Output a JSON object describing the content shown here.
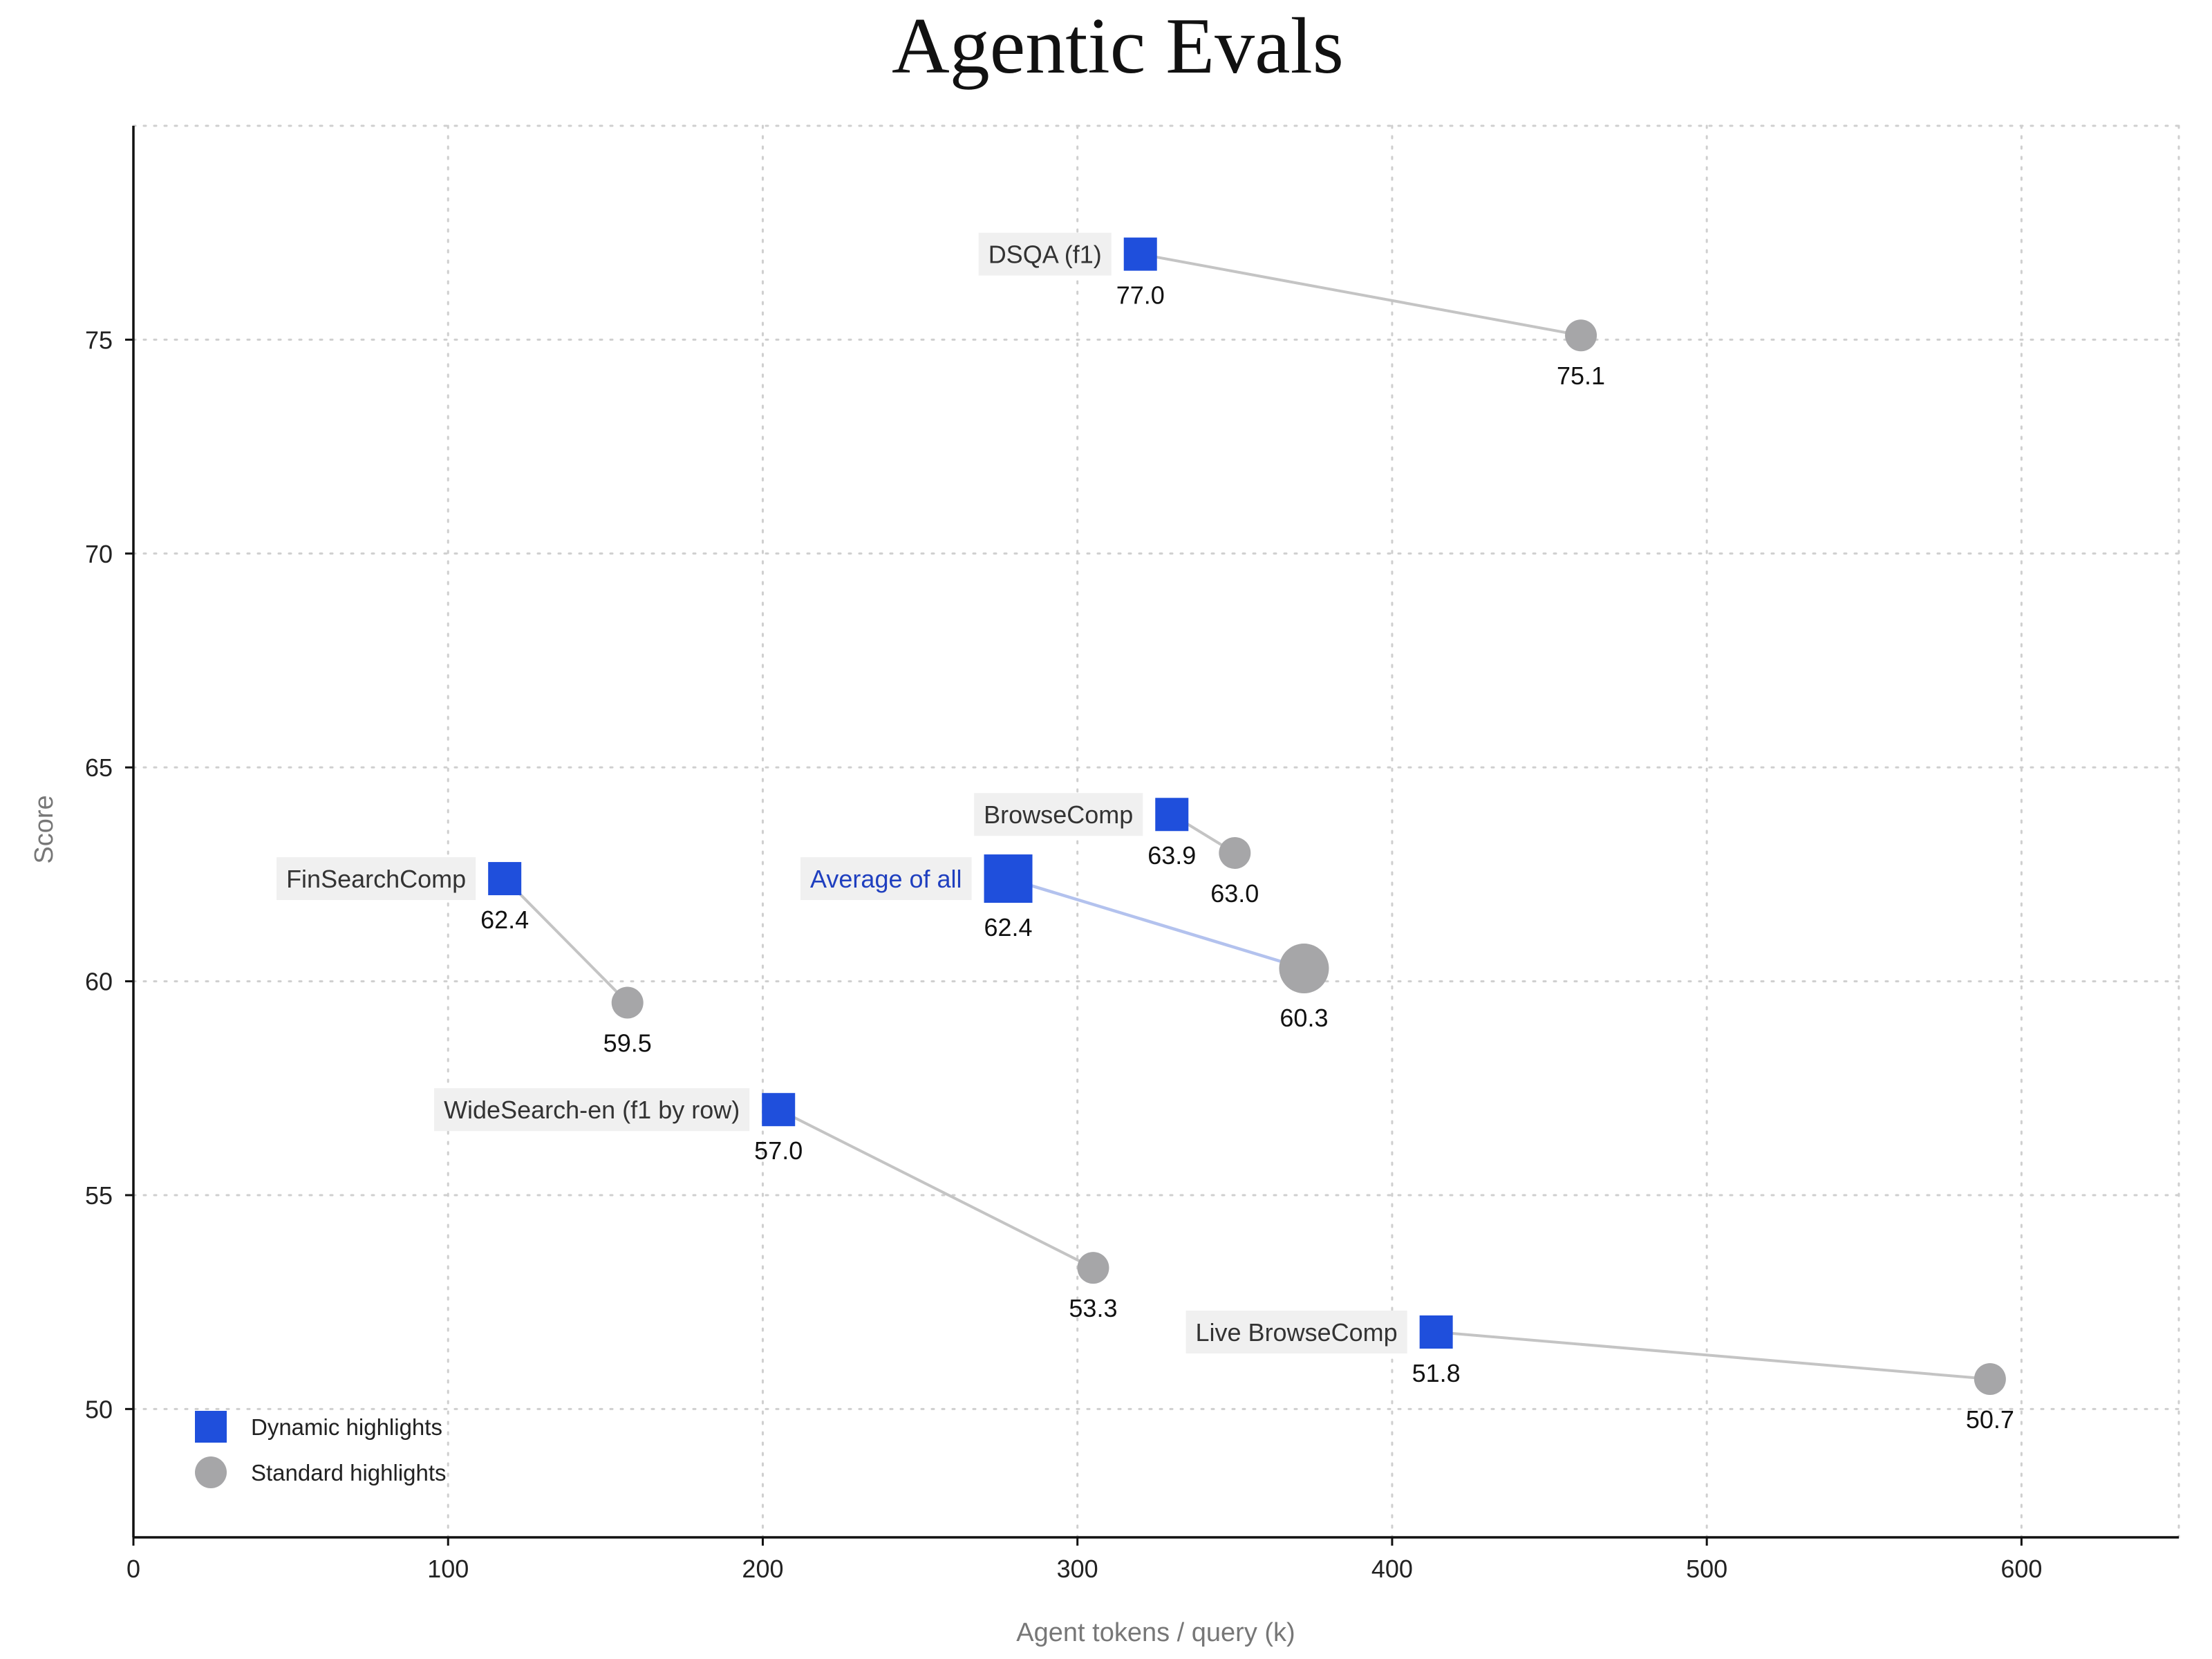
{
  "chart_data": {
    "type": "scatter",
    "title": "Agentic Evals",
    "xlabel": "Agent tokens / query (k)",
    "ylabel": "Score",
    "xlim": [
      0,
      650
    ],
    "ylim": [
      47,
      80
    ],
    "xticks": [
      0,
      100,
      200,
      300,
      400,
      500,
      600
    ],
    "yticks": [
      50,
      55,
      60,
      65,
      70,
      75
    ],
    "grid": true,
    "legend_position": "bottom-left",
    "legend": [
      {
        "label": "Dynamic highlights",
        "marker": "square",
        "color": "#1f4fdc"
      },
      {
        "label": "Standard highlights",
        "marker": "circle",
        "color": "#a6a6a8"
      }
    ],
    "colors": {
      "dynamic": "#1f4fdc",
      "standard": "#a6a6a8",
      "connector": "#c4c4c4",
      "average_connector": "#b3c2ee",
      "average_label": "#1f3fbf",
      "label_background": "#f0f0f0"
    },
    "series": [
      {
        "label": "DSQA (f1)",
        "dynamic": {
          "x": 320,
          "y": 77.0,
          "label": "77.0"
        },
        "standard": {
          "x": 460,
          "y": 75.1,
          "label": "75.1"
        }
      },
      {
        "label": "BrowseComp",
        "dynamic": {
          "x": 330,
          "y": 63.9,
          "label": "63.9"
        },
        "standard": {
          "x": 350,
          "y": 63.0,
          "label": "63.0"
        }
      },
      {
        "label": "FinSearchComp",
        "dynamic": {
          "x": 118,
          "y": 62.4,
          "label": "62.4"
        },
        "standard": {
          "x": 157,
          "y": 59.5,
          "label": "59.5"
        }
      },
      {
        "label": "Average of all",
        "highlight": true,
        "dynamic": {
          "x": 278,
          "y": 62.4,
          "label": "62.4"
        },
        "standard": {
          "x": 372,
          "y": 60.3,
          "label": "60.3"
        }
      },
      {
        "label": "WideSearch-en (f1 by row)",
        "dynamic": {
          "x": 205,
          "y": 57.0,
          "label": "57.0"
        },
        "standard": {
          "x": 305,
          "y": 53.3,
          "label": "53.3"
        }
      },
      {
        "label": "Live BrowseComp",
        "dynamic": {
          "x": 414,
          "y": 51.8,
          "label": "51.8"
        },
        "standard": {
          "x": 590,
          "y": 50.7,
          "label": "50.7"
        }
      }
    ]
  }
}
